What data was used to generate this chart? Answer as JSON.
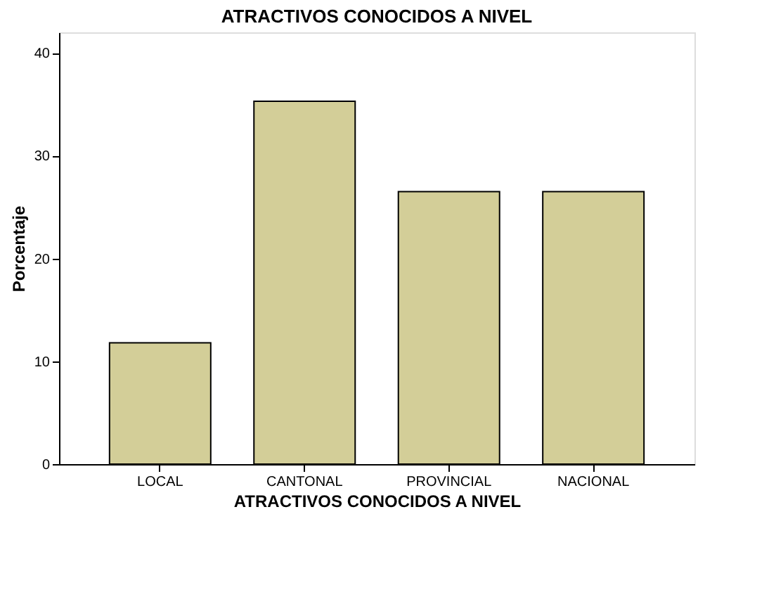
{
  "chart_data": {
    "type": "bar",
    "title": "ATRACTIVOS CONOCIDOS A NIVEL",
    "xlabel": "ATRACTIVOS CONOCIDOS A NIVEL",
    "ylabel": "Porcentaje",
    "categories": [
      "LOCAL",
      "CANTONAL",
      "PROVINCIAL",
      "NACIONAL"
    ],
    "values": [
      11.8,
      35.3,
      26.5,
      26.5
    ],
    "color": "#d3ce98",
    "ylim": [
      0,
      42
    ],
    "yticks": [
      0,
      10,
      20,
      30,
      40
    ],
    "grid": false
  }
}
